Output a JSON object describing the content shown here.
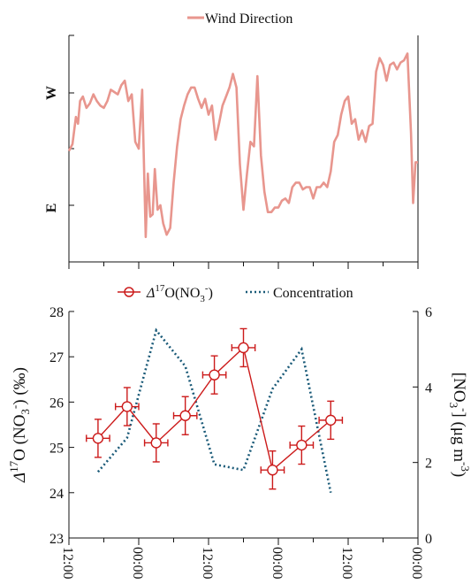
{
  "chart_data": [
    {
      "type": "line",
      "legend": "Wind Direction",
      "legend_position": "top-center",
      "color": "#e8968e",
      "y_tick_labels": [
        "W",
        "E"
      ],
      "x_range": [
        0,
        100
      ],
      "y_range": [
        0,
        100
      ],
      "series": [
        {
          "name": "Wind Direction",
          "points": [
            [
              0,
              49
            ],
            [
              1,
              52
            ],
            [
              2,
              64
            ],
            [
              2.6,
              61
            ],
            [
              3.2,
              71
            ],
            [
              4,
              73
            ],
            [
              5,
              68
            ],
            [
              6,
              70
            ],
            [
              7,
              74
            ],
            [
              8,
              71
            ],
            [
              9,
              69
            ],
            [
              10,
              68
            ],
            [
              11,
              71
            ],
            [
              12,
              76
            ],
            [
              13,
              75
            ],
            [
              14,
              74
            ],
            [
              15,
              78
            ],
            [
              16,
              80
            ],
            [
              17,
              71
            ],
            [
              18,
              74
            ],
            [
              19,
              53
            ],
            [
              20,
              50
            ],
            [
              21,
              76
            ],
            [
              22,
              11
            ],
            [
              22.6,
              39
            ],
            [
              23.3,
              20
            ],
            [
              24,
              21
            ],
            [
              24.6,
              41
            ],
            [
              25.4,
              23
            ],
            [
              26.2,
              25
            ],
            [
              27,
              17
            ],
            [
              28,
              12
            ],
            [
              29,
              15
            ],
            [
              30,
              35
            ],
            [
              31,
              51
            ],
            [
              32,
              63
            ],
            [
              33,
              69
            ],
            [
              34,
              74
            ],
            [
              35,
              77
            ],
            [
              36,
              77
            ],
            [
              37,
              72
            ],
            [
              38,
              68
            ],
            [
              39,
              72
            ],
            [
              40,
              65
            ],
            [
              41,
              69
            ],
            [
              42,
              54
            ],
            [
              43,
              61
            ],
            [
              44,
              69
            ],
            [
              45,
              73
            ],
            [
              46,
              77
            ],
            [
              47,
              83
            ],
            [
              48,
              77
            ],
            [
              49,
              43
            ],
            [
              50,
              23
            ],
            [
              51,
              39
            ],
            [
              52,
              53
            ],
            [
              53,
              51
            ],
            [
              54,
              82
            ],
            [
              55,
              47
            ],
            [
              56,
              31
            ],
            [
              57,
              22
            ],
            [
              58,
              22
            ],
            [
              59,
              24
            ],
            [
              60,
              24
            ],
            [
              61,
              27
            ],
            [
              62,
              28
            ],
            [
              63,
              26
            ],
            [
              64,
              33
            ],
            [
              65,
              35
            ],
            [
              66,
              35
            ],
            [
              67,
              32
            ],
            [
              68,
              33
            ],
            [
              69,
              33
            ],
            [
              70,
              28
            ],
            [
              71,
              33
            ],
            [
              72,
              33
            ],
            [
              73,
              35
            ],
            [
              74,
              33
            ],
            [
              75,
              40
            ],
            [
              76,
              53
            ],
            [
              77,
              56
            ],
            [
              78,
              65
            ],
            [
              79,
              71
            ],
            [
              80,
              73
            ],
            [
              81,
              61
            ],
            [
              82,
              63
            ],
            [
              83,
              54
            ],
            [
              84,
              58
            ],
            [
              85,
              53
            ],
            [
              86,
              60
            ],
            [
              87,
              61
            ],
            [
              88,
              84
            ],
            [
              89,
              90
            ],
            [
              90,
              87
            ],
            [
              91,
              80
            ],
            [
              92,
              87
            ],
            [
              93,
              88
            ],
            [
              94,
              85
            ],
            [
              95,
              88
            ],
            [
              96,
              89
            ],
            [
              97,
              92
            ],
            [
              98,
              57
            ],
            [
              98.6,
              26
            ],
            [
              99.3,
              44
            ],
            [
              100,
              44
            ]
          ]
        }
      ]
    },
    {
      "type": "line",
      "xlabel": "",
      "ylabel_left": "Δ17O (NO3-) (‰)",
      "ylabel_right": "[NO3-] (μg m-3)",
      "legend_position": "top-center",
      "x_tick_labels": [
        "12:00",
        "00:00",
        "12:00",
        "00:00",
        "12:00",
        "00:00"
      ],
      "y_left_ticks": [
        23,
        24,
        25,
        26,
        27,
        28
      ],
      "y_right_ticks": [
        0,
        2,
        4,
        6
      ],
      "y_left_range": [
        23,
        28
      ],
      "y_right_range": [
        0,
        6
      ],
      "x_range": [
        0,
        60
      ],
      "series": [
        {
          "name": "Δ17O(NO3-)",
          "axis": "left",
          "color": "#cc1b1b",
          "marker": "circle-plus",
          "x": [
            5,
            10,
            15,
            20,
            25,
            30,
            35,
            40,
            45
          ],
          "y": [
            25.2,
            25.9,
            25.1,
            25.7,
            26.6,
            27.2,
            24.5,
            25.05,
            25.6
          ],
          "y_err": [
            0.42,
            0.42,
            0.42,
            0.42,
            0.42,
            0.42,
            0.42,
            0.42,
            0.42
          ],
          "x_err": [
            2,
            2,
            2,
            2,
            2,
            2,
            2,
            2,
            2
          ]
        },
        {
          "name": "Concentration",
          "axis": "right",
          "color": "#1a5a78",
          "linestyle": "dotted",
          "x": [
            5,
            10,
            15,
            20,
            25,
            30,
            35,
            40,
            45
          ],
          "y": [
            1.75,
            2.65,
            5.5,
            4.55,
            1.95,
            1.8,
            3.95,
            5.0,
            1.2
          ]
        }
      ]
    }
  ]
}
